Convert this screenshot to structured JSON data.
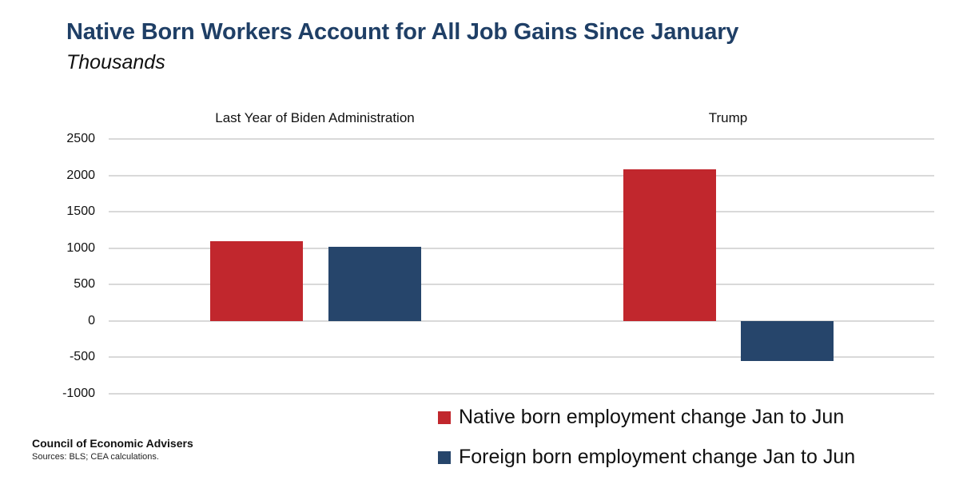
{
  "header": {
    "title": "Native Born Workers Account for All Job Gains Since January",
    "subtitle": "Thousands"
  },
  "colors": {
    "native": "#c1272d",
    "foreign": "#26456b",
    "title": "#1f3f66",
    "grid": "#d9d9d9"
  },
  "panels": [
    {
      "label": "Last Year of Biden Administration"
    },
    {
      "label": "Trump"
    }
  ],
  "y_axis": {
    "ticks": [
      "2500",
      "2000",
      "1500",
      "1000",
      "500",
      "0",
      "-500",
      "-1000"
    ]
  },
  "legend": {
    "items": [
      {
        "label": "Native born employment change Jan to Jun",
        "color": "#c1272d"
      },
      {
        "label": "Foreign born employment change Jan to Jun",
        "color": "#26456b"
      }
    ]
  },
  "footer": {
    "org": "Council of Economic Advisers",
    "sources": "Sources: BLS; CEA calculations."
  },
  "chart_data": {
    "type": "bar",
    "title": "Native Born Workers Account for All Job Gains Since January",
    "subtitle": "Thousands",
    "categories": [
      "Last Year of Biden Administration",
      "Trump"
    ],
    "series": [
      {
        "name": "Native born employment change Jan to Jun",
        "color": "#c1272d",
        "values": [
          1100,
          2090
        ]
      },
      {
        "name": "Foreign born employment change Jan to Jun",
        "color": "#26456b",
        "values": [
          1020,
          -550
        ]
      }
    ],
    "xlabel": "",
    "ylabel": "Thousands",
    "ylim": [
      -1000,
      2500
    ],
    "yticks": [
      -1000,
      -500,
      0,
      500,
      1000,
      1500,
      2000,
      2500
    ],
    "grid": true,
    "legend_position": "bottom-right",
    "source": "Sources: BLS; CEA calculations."
  }
}
